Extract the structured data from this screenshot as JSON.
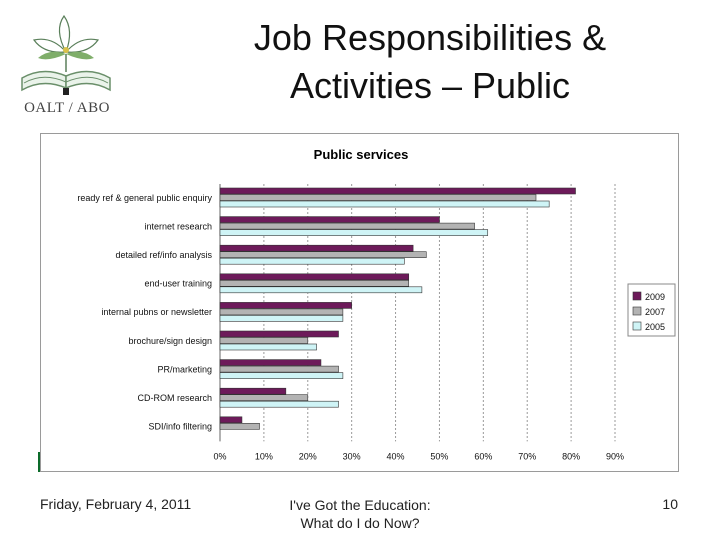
{
  "logo": {
    "text": "OALT / ABO"
  },
  "slide": {
    "title_line1": "Job Responsibilities &",
    "title_line2": "Activities – Public"
  },
  "footer": {
    "date": "Friday, February 4, 2011",
    "center_line1": "I've Got the Education:",
    "center_line2": "What do I do Now?",
    "page": "10"
  },
  "colors": {
    "2009": "#6d1a5a",
    "2007": "#b3b3b3",
    "2005": "#cff4f6",
    "band": "#0c6b2a"
  },
  "chart_data": {
    "type": "bar",
    "orientation": "horizontal",
    "title": "Public services",
    "categories": [
      "ready ref & general public enquiry",
      "internet research",
      "detailed ref/info analysis",
      "end-user training",
      "internal pubns or newsletter",
      "brochure/sign design",
      "PR/marketing",
      "CD-ROM research",
      "SDI/info filtering"
    ],
    "series": [
      {
        "name": "2009",
        "values": [
          81,
          50,
          44,
          43,
          30,
          27,
          23,
          15,
          5
        ]
      },
      {
        "name": "2007",
        "values": [
          72,
          58,
          47,
          43,
          28,
          20,
          27,
          20,
          9
        ]
      },
      {
        "name": "2005",
        "values": [
          75,
          61,
          42,
          46,
          28,
          22,
          28,
          27,
          0
        ]
      }
    ],
    "xlim": [
      0,
      90
    ],
    "ticks": [
      "0%",
      "10%",
      "20%",
      "30%",
      "40%",
      "50%",
      "60%",
      "70%",
      "80%",
      "90%"
    ],
    "grid": true,
    "legend": "right"
  }
}
